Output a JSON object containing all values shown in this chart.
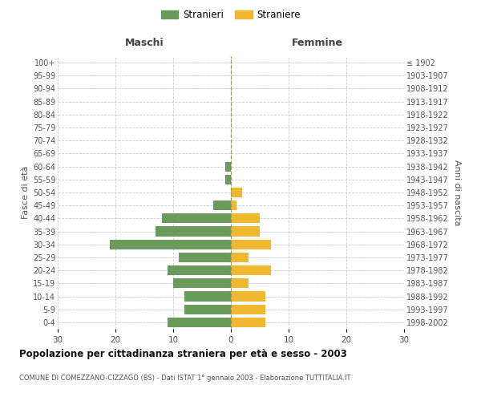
{
  "age_groups": [
    "0-4",
    "5-9",
    "10-14",
    "15-19",
    "20-24",
    "25-29",
    "30-34",
    "35-39",
    "40-44",
    "45-49",
    "50-54",
    "55-59",
    "60-64",
    "65-69",
    "70-74",
    "75-79",
    "80-84",
    "85-89",
    "90-94",
    "95-99",
    "100+"
  ],
  "birth_years": [
    "1998-2002",
    "1993-1997",
    "1988-1992",
    "1983-1987",
    "1978-1982",
    "1973-1977",
    "1968-1972",
    "1963-1967",
    "1958-1962",
    "1953-1957",
    "1948-1952",
    "1943-1947",
    "1938-1942",
    "1933-1937",
    "1928-1932",
    "1923-1927",
    "1918-1922",
    "1913-1917",
    "1908-1912",
    "1903-1907",
    "≤ 1902"
  ],
  "males": [
    11,
    8,
    8,
    10,
    11,
    9,
    21,
    13,
    12,
    3,
    0,
    1,
    1,
    0,
    0,
    0,
    0,
    0,
    0,
    0,
    0
  ],
  "females": [
    6,
    6,
    6,
    3,
    7,
    3,
    7,
    5,
    5,
    1,
    2,
    0,
    0,
    0,
    0,
    0,
    0,
    0,
    0,
    0,
    0
  ],
  "male_color": "#6a9a5a",
  "female_color": "#f0b830",
  "title": "Popolazione per cittadinanza straniera per età e sesso - 2003",
  "subtitle": "COMUNE DI COMEZZANO-CIZZAGO (BS) - Dati ISTAT 1° gennaio 2003 - Elaborazione TUTTITALIA.IT",
  "xlabel_left": "Maschi",
  "xlabel_right": "Femmine",
  "ylabel_left": "Fasce di età",
  "ylabel_right": "Anni di nascita",
  "legend_males": "Stranieri",
  "legend_females": "Straniere",
  "xlim": 30,
  "background_color": "#ffffff",
  "grid_color": "#cccccc"
}
